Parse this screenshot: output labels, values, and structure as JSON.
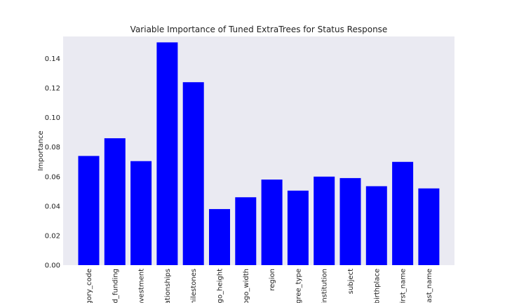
{
  "chart_data": {
    "type": "bar",
    "title": "Variable Importance of Tuned ExtraTrees for Status Response",
    "xlabel": "",
    "ylabel": "Importance",
    "ylim": [
      0,
      0.155
    ],
    "yticks": [
      "0.00",
      "0.02",
      "0.04",
      "0.06",
      "0.08",
      "0.10",
      "0.12",
      "0.14"
    ],
    "ytick_values": [
      0,
      0.02,
      0.04,
      0.06,
      0.08,
      0.1,
      0.12,
      0.14
    ],
    "grid": false,
    "categories": [
      "gory_code",
      "ad_funding",
      "investment",
      "lationships",
      "milestones",
      "ogo_height",
      "logo_width",
      "region",
      "egree_type",
      "institution",
      "subject",
      "birthplace",
      "first_name",
      "last_name"
    ],
    "values": [
      0.074,
      0.086,
      0.0705,
      0.151,
      0.124,
      0.038,
      0.046,
      0.058,
      0.0505,
      0.06,
      0.059,
      0.0535,
      0.07,
      0.052
    ],
    "colors": {
      "bar": "#0000ff",
      "plot_bg": "#eaeaf2",
      "text": "#222222"
    }
  }
}
